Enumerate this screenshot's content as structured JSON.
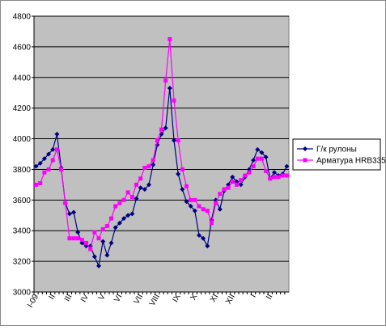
{
  "chart_data": {
    "type": "line",
    "categories": [
      "I-09",
      null,
      null,
      null,
      "II",
      null,
      null,
      null,
      "III",
      null,
      null,
      null,
      "IV",
      null,
      null,
      null,
      "V",
      null,
      null,
      null,
      "VI",
      null,
      null,
      null,
      null,
      "VII",
      null,
      null,
      null,
      "VIII",
      null,
      null,
      null,
      null,
      "IX",
      null,
      null,
      null,
      "X",
      null,
      null,
      null,
      null,
      "XI",
      null,
      null,
      null,
      "XII",
      null,
      null,
      null,
      null,
      "I",
      null,
      null,
      null,
      "II",
      null,
      null,
      null,
      null
    ],
    "series": [
      {
        "name": "Г/к рулоны",
        "color": "#000080",
        "marker": "diamond",
        "values": [
          3820,
          3840,
          3870,
          3900,
          3930,
          4030,
          3810,
          3580,
          3510,
          3520,
          3390,
          3320,
          3300,
          3300,
          3230,
          3170,
          3330,
          3240,
          3320,
          3420,
          3450,
          3480,
          3500,
          3510,
          3610,
          3680,
          3670,
          3700,
          3830,
          3960,
          4030,
          4070,
          4330,
          3990,
          3770,
          3670,
          3590,
          3560,
          3530,
          3370,
          3350,
          3300,
          3470,
          3600,
          3540,
          3660,
          3700,
          3750,
          3720,
          3700,
          3750,
          3800,
          3860,
          3930,
          3910,
          3880,
          3740,
          3780,
          3760,
          3770,
          3820
        ]
      },
      {
        "name": "Арматура HRB335",
        "color": "#ff00ff",
        "marker": "square",
        "values": [
          3700,
          3710,
          3780,
          3800,
          3860,
          3930,
          3800,
          3580,
          3350,
          3350,
          3350,
          3340,
          3320,
          3280,
          3390,
          3350,
          3410,
          3430,
          3480,
          3560,
          3580,
          3600,
          3650,
          3620,
          3700,
          3740,
          3810,
          3820,
          3860,
          3990,
          4060,
          4380,
          4650,
          4250,
          3990,
          3800,
          3690,
          3600,
          3600,
          3560,
          3540,
          3530,
          3450,
          3580,
          3640,
          3670,
          3680,
          3720,
          3700,
          3730,
          3760,
          3780,
          3820,
          3870,
          3870,
          3790,
          3740,
          3750,
          3750,
          3760,
          3760
        ]
      }
    ],
    "ylim": [
      3000,
      4800
    ],
    "yticks": [
      3000,
      3200,
      3400,
      3600,
      3800,
      4000,
      4200,
      4400,
      4600,
      4800
    ],
    "grid": true,
    "legend": "right"
  }
}
